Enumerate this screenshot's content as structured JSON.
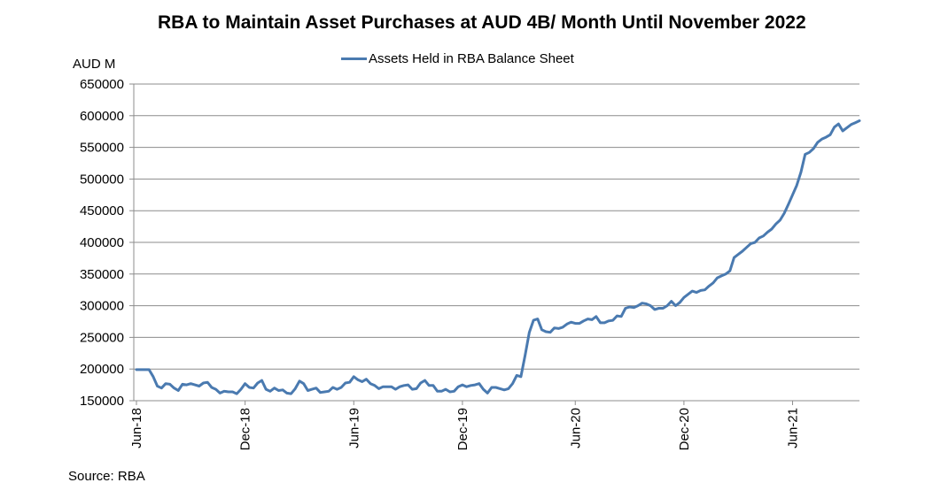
{
  "chart_data": {
    "type": "line",
    "title": "RBA to Maintain Asset Purchases at AUD 4B/ Month Until November 2022",
    "ylabel": "AUD M",
    "xlabel": "",
    "ylim": [
      150000,
      650000
    ],
    "yticks": [
      150000,
      200000,
      250000,
      300000,
      350000,
      400000,
      450000,
      500000,
      550000,
      600000,
      650000
    ],
    "xticks": [
      {
        "label": "Jun-18",
        "index": 0
      },
      {
        "label": "Dec-18",
        "index": 26
      },
      {
        "label": "Jun-19",
        "index": 52
      },
      {
        "label": "Dec-19",
        "index": 78
      },
      {
        "label": "Jun-20",
        "index": 105
      },
      {
        "label": "Dec-20",
        "index": 131
      },
      {
        "label": "Jun-21",
        "index": 157
      }
    ],
    "legend_position": "top-center",
    "grid": true,
    "source": "Source: RBA",
    "series": [
      {
        "name": "Assets Held in RBA Balance Sheet",
        "color": "#4a7ab0",
        "values": [
          199000,
          199000,
          199000,
          199000,
          188000,
          173000,
          170000,
          177000,
          176000,
          170000,
          166000,
          176000,
          175000,
          177000,
          175000,
          173000,
          178000,
          179000,
          171000,
          168000,
          162000,
          165000,
          164000,
          164000,
          161000,
          168000,
          177000,
          171000,
          170000,
          178000,
          182000,
          168000,
          165000,
          170000,
          166000,
          167000,
          162000,
          161000,
          169000,
          181000,
          177000,
          166000,
          168000,
          170000,
          163000,
          164000,
          165000,
          171000,
          168000,
          171000,
          178000,
          179000,
          188000,
          183000,
          180000,
          184000,
          177000,
          174000,
          169000,
          172000,
          172000,
          172000,
          168000,
          172000,
          174000,
          175000,
          168000,
          169000,
          178000,
          182000,
          174000,
          174000,
          165000,
          165000,
          168000,
          164000,
          165000,
          172000,
          175000,
          172000,
          174000,
          175000,
          177000,
          168000,
          162000,
          171000,
          171000,
          169000,
          167000,
          169000,
          177000,
          190000,
          188000,
          222000,
          258000,
          277000,
          279000,
          262000,
          259000,
          258000,
          265000,
          264000,
          266000,
          271000,
          274000,
          272000,
          272000,
          276000,
          279000,
          278000,
          283000,
          273000,
          273000,
          276000,
          277000,
          284000,
          283000,
          296000,
          298000,
          297000,
          300000,
          304000,
          303000,
          300000,
          294000,
          296000,
          296000,
          300000,
          307000,
          300000,
          305000,
          313000,
          318000,
          323000,
          321000,
          324000,
          325000,
          331000,
          336000,
          344000,
          347000,
          350000,
          355000,
          376000,
          381000,
          386000,
          392000,
          398000,
          400000,
          407000,
          410000,
          416000,
          421000,
          429000,
          435000,
          446000,
          460000,
          475000,
          490000,
          511000,
          539000,
          542000,
          548000,
          558000,
          563000,
          566000,
          570000,
          582000,
          587000,
          576000,
          581000,
          586000,
          589000,
          592000
        ]
      }
    ]
  }
}
